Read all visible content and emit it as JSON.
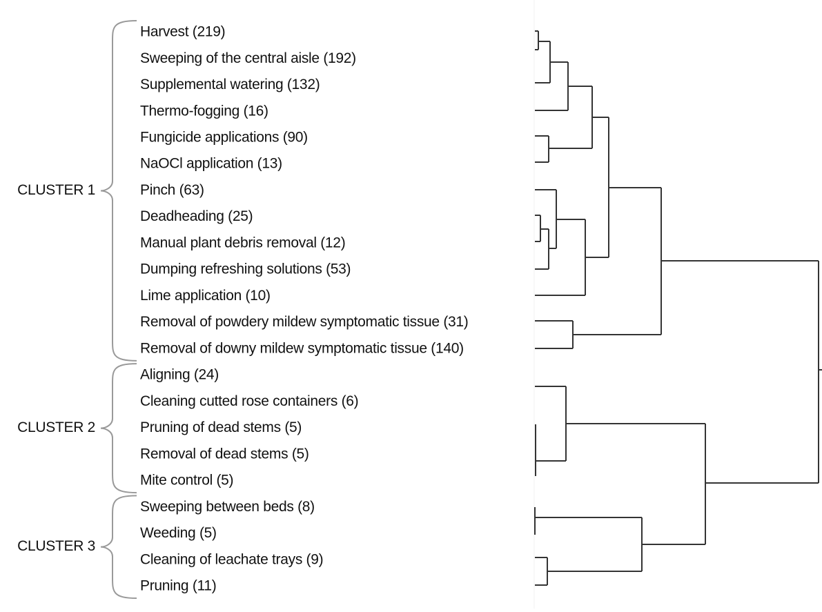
{
  "clusters": [
    {
      "label": "CLUSTER 1",
      "items": [
        "Harvest (219)",
        "Sweeping of the central aisle (192)",
        "Supplemental watering (132)",
        "Thermo-fogging (16)",
        "Fungicide applications (90)",
        "NaOCl application (13)",
        "Pinch (63)",
        "Deadheading (25)",
        "Manual plant debris removal (12)",
        "Dumping refreshing solutions (53)",
        "Lime application (10)",
        "Removal of powdery mildew symptomatic tissue (31)",
        "Removal of downy mildew symptomatic tissue  (140)"
      ]
    },
    {
      "label": "CLUSTER 2",
      "items": [
        "Aligning (24)",
        "Cleaning cutted rose containers (6)",
        "Pruning of dead stems (5)",
        "Removal of dead stems (5)",
        "Mite control (5)"
      ]
    },
    {
      "label": "CLUSTER 3",
      "items": [
        "Sweeping between beds (8)",
        "Weeding (5)",
        "Cleaning of leachate trays (9)",
        "Pruning (11)"
      ]
    }
  ]
}
